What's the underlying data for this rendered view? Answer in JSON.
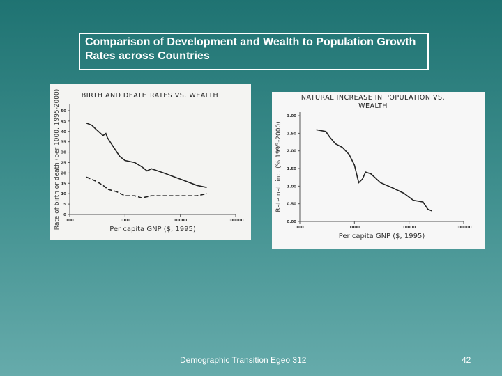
{
  "slide_title": "Comparison of Development and Wealth to Population Growth Rates across Countries",
  "footer": "Demographic Transition Egeo 312",
  "page_number": "42",
  "chart_data": [
    {
      "type": "line",
      "title": "BIRTH AND DEATH RATES VS. WEALTH",
      "xlabel": "Per capita GNP ($, 1995)",
      "ylabel": "Rate of birth or death (per 1000, 1995-2000)",
      "xscale": "log",
      "xlim": [
        100,
        100000
      ],
      "xticks": [
        100,
        1000,
        10000,
        100000
      ],
      "ylim": [
        0,
        53
      ],
      "yticks": [
        0,
        5,
        10,
        15,
        20,
        25,
        30,
        35,
        40,
        45,
        50
      ],
      "series": [
        {
          "color": "#222222",
          "linestyle": "solid",
          "x": [
            200,
            250,
            300,
            400,
            450,
            480,
            600,
            800,
            1000,
            1500,
            2000,
            2500,
            3000,
            5000,
            10000,
            20000,
            30000
          ],
          "values": [
            44,
            43,
            41,
            38,
            39,
            37,
            33,
            28,
            26,
            25,
            23,
            21,
            22,
            20,
            17,
            14,
            13
          ]
        },
        {
          "color": "#222222",
          "linestyle": "dashed",
          "x": [
            200,
            300,
            400,
            500,
            700,
            1000,
            1500,
            2000,
            3000,
            5000,
            10000,
            20000,
            30000
          ],
          "values": [
            18,
            16,
            14,
            12,
            11,
            9,
            9,
            8,
            9,
            9,
            9,
            9,
            10
          ]
        }
      ]
    },
    {
      "type": "line",
      "title": "NATURAL INCREASE IN POPULATION VS. WEALTH",
      "xlabel": "Per capita GNP ($, 1995)",
      "ylabel": "Rate nat. inc. (% 1995-2000)",
      "xscale": "log",
      "xlim": [
        100,
        100000
      ],
      "xticks": [
        100,
        1000,
        10000,
        100000
      ],
      "ylim": [
        0,
        3.1
      ],
      "yticks": [
        {
          "value": 0,
          "label": "0.00"
        },
        {
          "value": 0.5,
          "label": "0.50"
        },
        {
          "value": 1,
          "label": "1.00"
        },
        {
          "value": 1.5,
          "label": "1.50"
        },
        {
          "value": 2,
          "label": "2.00"
        },
        {
          "value": 2.5,
          "label": "2.50"
        },
        {
          "value": 3,
          "label": "3.00"
        }
      ],
      "series": [
        {
          "color": "#222222",
          "linestyle": "solid",
          "x": [
            200,
            300,
            350,
            450,
            600,
            800,
            1000,
            1200,
            1400,
            1600,
            2000,
            3000,
            5000,
            8000,
            12000,
            18000,
            22000,
            26000
          ],
          "values": [
            2.6,
            2.55,
            2.4,
            2.2,
            2.1,
            1.9,
            1.6,
            1.1,
            1.2,
            1.4,
            1.35,
            1.1,
            0.95,
            0.8,
            0.6,
            0.55,
            0.35,
            0.3
          ]
        }
      ]
    }
  ]
}
